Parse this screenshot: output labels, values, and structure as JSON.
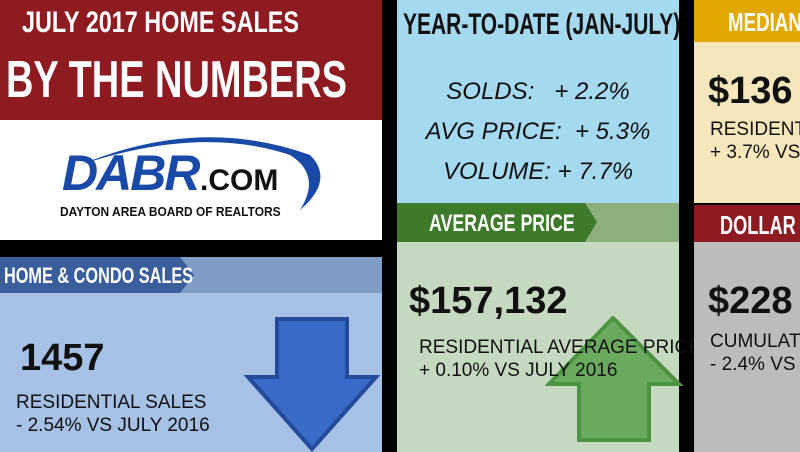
{
  "title": {
    "line1": "JULY 2017 HOME SALES",
    "line2": "BY THE NUMBERS"
  },
  "logo": {
    "main": "DABR",
    "suffix": ".COM",
    "tagline": "DAYTON AREA BOARD OF REALTORS"
  },
  "sales": {
    "header": "HOME & CONDO SALES",
    "value": "1457",
    "label": "RESIDENTIAL SALES",
    "change": "- 2.54% VS JULY 2016",
    "arrow": "down-arrow-icon"
  },
  "ytd": {
    "header": "YEAR-TO-DATE (JAN-JULY)",
    "rows": [
      "SOLDS:   + 2.2%",
      "AVG PRICE:  + 5.3%",
      "VOLUME: + 7.7%"
    ]
  },
  "avg": {
    "header": "AVERAGE PRICE",
    "value": "$157,132",
    "label": "RESIDENTIAL AVERAGE PRICE",
    "change": "+ 0.10% VS JULY 2016",
    "arrow": "up-arrow-icon"
  },
  "median": {
    "header": "MEDIAN P",
    "value": "$136",
    "label": "RESIDENTI",
    "change": "+ 3.7% VS"
  },
  "volume": {
    "header": "DOLLAR VO",
    "value": "$228",
    "label": "CUMULAT",
    "change": "- 2.4% VS"
  },
  "colors": {
    "red": "#8e1a22",
    "blue": "#7e9cc4",
    "lightblue": "#a6c0e6",
    "ytd": "#a4d9ef",
    "green": "#3d7a2a",
    "palegreen": "#c5d8c0",
    "gold": "#e2a800",
    "cream": "#f5e6bc",
    "gray": "#bcbcbc"
  }
}
